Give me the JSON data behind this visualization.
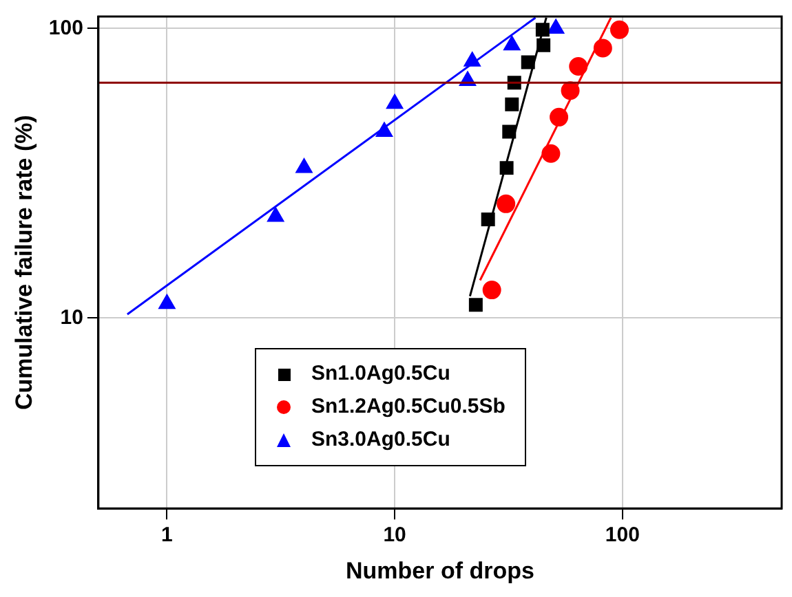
{
  "chart_data": {
    "type": "scatter",
    "xlabel": "Number of drops",
    "ylabel": "Cumulative failure rate (%)",
    "log": "xy",
    "xlim": [
      0.5,
      500
    ],
    "ylim": [
      2.2,
      110
    ],
    "xticks": [
      1,
      10,
      100
    ],
    "yticks": [
      10,
      100
    ],
    "grid": true,
    "legend": "bottom",
    "series": [
      {
        "name": "Sn1.0Ag0.5Cu",
        "color": "#000000",
        "marker": "square",
        "x": [
          22.7,
          25.7,
          31,
          31.8,
          32.7,
          33.5,
          38.5,
          45,
          44.6
        ],
        "values": [
          11.1,
          21.9,
          33,
          44,
          54.7,
          65,
          76.5,
          87.5,
          99
        ]
      },
      {
        "name": "Sn1.2Ag0.5Cu0.5Sb",
        "color": "#ff0000",
        "marker": "circle",
        "x": [
          26.7,
          30.8,
          48.5,
          52.6,
          59,
          64,
          82,
          97
        ],
        "values": [
          12.5,
          24.8,
          37,
          49.4,
          61,
          74,
          85.5,
          99
        ]
      },
      {
        "name": "Sn3.0Ag0.5Cu",
        "color": "#0000ff",
        "marker": "triangle",
        "x": [
          1,
          3,
          4,
          9,
          10,
          20.9,
          21.9,
          32.7,
          51
        ],
        "values": [
          11.2,
          22.4,
          33,
          44,
          55,
          66,
          77,
          87.5,
          100
        ]
      },
      {
        "type": "line",
        "color": "#000000",
        "marker": "none",
        "x": [
          21.4,
          46.3
        ],
        "values": [
          11.9,
          109
        ]
      },
      {
        "type": "line",
        "color": "#ff0000",
        "marker": "none",
        "x": [
          23.7,
          89
        ],
        "values": [
          13.5,
          109
        ]
      },
      {
        "type": "line",
        "color": "#0000ff",
        "marker": "none",
        "x": [
          0.67,
          41.5
        ],
        "values": [
          10.3,
          109
        ]
      }
    ],
    "ref_lines": [
      {
        "axis": "y",
        "value": 65,
        "color": "#8b0000"
      }
    ]
  }
}
